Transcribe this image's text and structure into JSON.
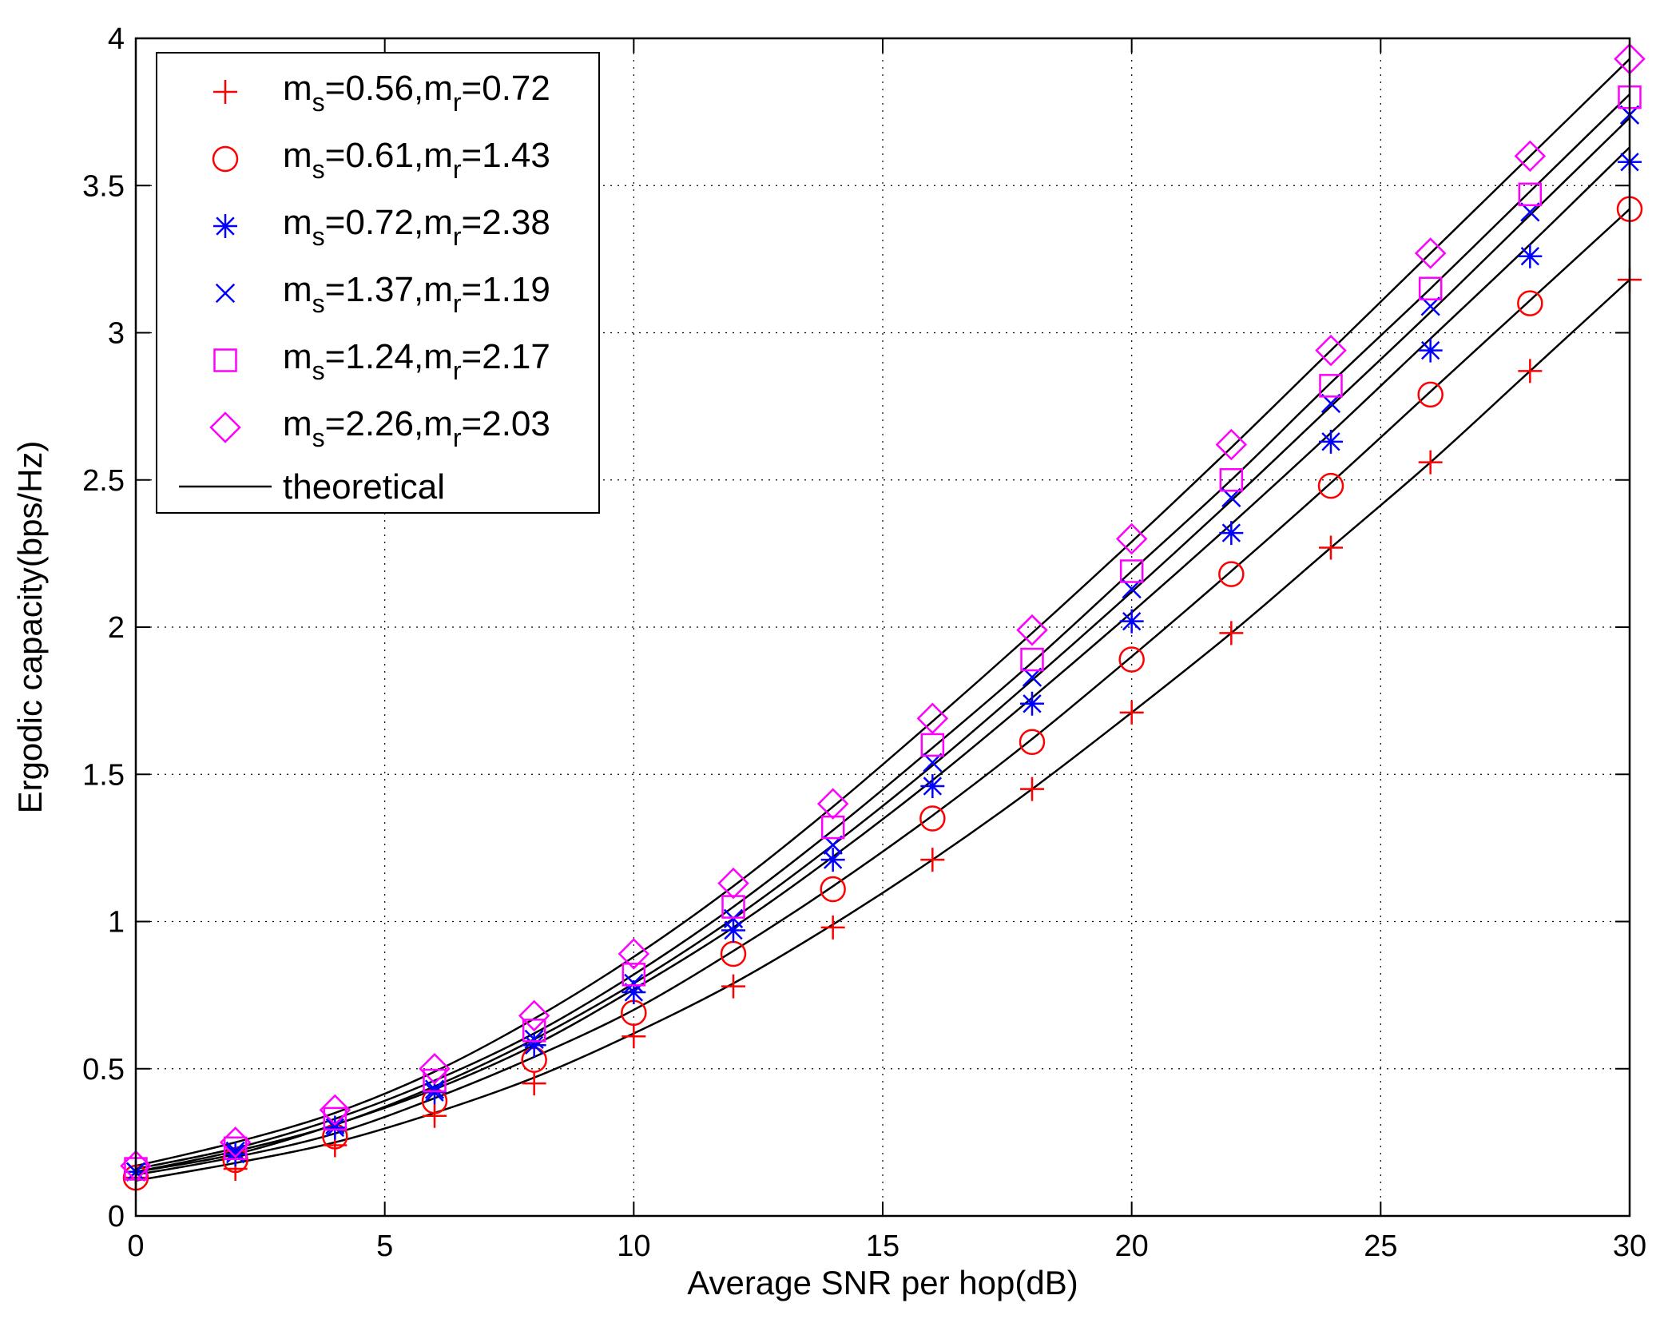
{
  "chart_data": {
    "type": "line",
    "title": "",
    "xlabel": "Average SNR per hop(dB)",
    "ylabel": "Ergodic capacity(bps/Hz)",
    "xlim": [
      0,
      30
    ],
    "ylim": [
      0,
      4
    ],
    "xticks": [
      0,
      5,
      10,
      15,
      20,
      25,
      30
    ],
    "yticks": [
      0,
      0.5,
      1,
      1.5,
      2,
      2.5,
      3,
      3.5,
      4
    ],
    "xtick_labels": [
      "0",
      "5",
      "10",
      "15",
      "20",
      "25",
      "30"
    ],
    "ytick_labels": [
      "0",
      "0.5",
      "1",
      "1.5",
      "2",
      "2.5",
      "3",
      "3.5",
      "4"
    ],
    "grid": true,
    "legend_position": "top-left",
    "x": [
      0,
      2,
      4,
      6,
      8,
      10,
      12,
      14,
      16,
      18,
      20,
      22,
      24,
      26,
      28,
      30
    ],
    "series": [
      {
        "name": "ms=0.56,mr=0.72",
        "ms": "0.56",
        "mr": "0.72",
        "marker": "plus",
        "color": "#ff0000",
        "values": [
          0.13,
          0.16,
          0.24,
          0.34,
          0.45,
          0.61,
          0.78,
          0.98,
          1.21,
          1.45,
          1.71,
          1.98,
          2.27,
          2.56,
          2.87,
          3.18
        ]
      },
      {
        "name": "ms=0.61,mr=1.43",
        "ms": "0.61",
        "mr": "1.43",
        "marker": "circle",
        "color": "#ff0000",
        "values": [
          0.13,
          0.19,
          0.27,
          0.39,
          0.53,
          0.69,
          0.89,
          1.11,
          1.35,
          1.61,
          1.89,
          2.18,
          2.48,
          2.79,
          3.1,
          3.42
        ]
      },
      {
        "name": "ms=0.72,mr=2.38",
        "ms": "0.72",
        "mr": "2.38",
        "marker": "asterisk",
        "color": "#0000ff",
        "values": [
          0.15,
          0.21,
          0.3,
          0.42,
          0.58,
          0.76,
          0.97,
          1.21,
          1.46,
          1.74,
          2.02,
          2.32,
          2.63,
          2.94,
          3.26,
          3.58
        ]
      },
      {
        "name": "ms=1.37,mr=1.19",
        "ms": "1.37",
        "mr": "1.19",
        "marker": "cross",
        "color": "#0000ff",
        "values": [
          0.15,
          0.22,
          0.31,
          0.43,
          0.6,
          0.79,
          1.01,
          1.26,
          1.54,
          1.83,
          2.13,
          2.44,
          2.76,
          3.09,
          3.41,
          3.74
        ]
      },
      {
        "name": "ms=1.24,mr=2.17",
        "ms": "1.24",
        "mr": "2.17",
        "marker": "square",
        "color": "#ff00ff",
        "values": [
          0.16,
          0.23,
          0.33,
          0.46,
          0.63,
          0.82,
          1.05,
          1.32,
          1.6,
          1.89,
          2.19,
          2.5,
          2.82,
          3.15,
          3.47,
          3.8
        ]
      },
      {
        "name": "ms=2.26,mr=2.03",
        "ms": "2.26",
        "mr": "2.03",
        "marker": "diamond",
        "color": "#ff00ff",
        "values": [
          0.17,
          0.25,
          0.36,
          0.5,
          0.68,
          0.89,
          1.13,
          1.4,
          1.69,
          1.99,
          2.3,
          2.62,
          2.94,
          3.27,
          3.6,
          3.93
        ]
      }
    ],
    "theoretical": {
      "name": "theoretical",
      "color": "#000000",
      "curves": [
        [
          0.12,
          0.18,
          0.25,
          0.35,
          0.47,
          0.62,
          0.79,
          0.99,
          1.21,
          1.45,
          1.71,
          1.98,
          2.27,
          2.56,
          2.87,
          3.18
        ],
        [
          0.14,
          0.2,
          0.28,
          0.4,
          0.54,
          0.7,
          0.9,
          1.12,
          1.36,
          1.62,
          1.9,
          2.19,
          2.49,
          2.8,
          3.11,
          3.42
        ],
        [
          0.15,
          0.21,
          0.31,
          0.43,
          0.58,
          0.77,
          0.98,
          1.22,
          1.48,
          1.76,
          2.05,
          2.35,
          2.66,
          2.98,
          3.3,
          3.63
        ],
        [
          0.15,
          0.22,
          0.31,
          0.44,
          0.6,
          0.79,
          1.01,
          1.26,
          1.53,
          1.82,
          2.12,
          2.43,
          2.75,
          3.07,
          3.4,
          3.73
        ],
        [
          0.16,
          0.23,
          0.33,
          0.46,
          0.62,
          0.82,
          1.05,
          1.31,
          1.59,
          1.88,
          2.19,
          2.5,
          2.83,
          3.15,
          3.48,
          3.81
        ],
        [
          0.17,
          0.25,
          0.35,
          0.49,
          0.67,
          0.88,
          1.12,
          1.39,
          1.68,
          1.98,
          2.29,
          2.61,
          2.94,
          3.27,
          3.6,
          3.93
        ]
      ]
    }
  }
}
